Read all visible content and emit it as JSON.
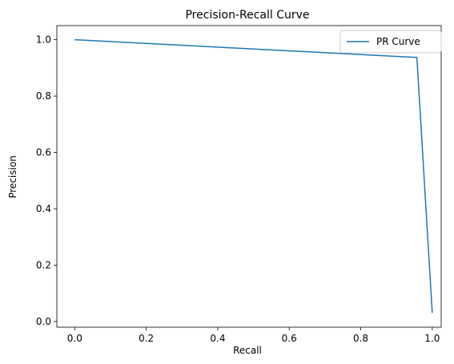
{
  "chart_data": {
    "type": "line",
    "title": "Precision-Recall Curve",
    "xlabel": "Recall",
    "ylabel": "Precision",
    "xlim": [
      -0.05,
      1.025
    ],
    "ylim": [
      -0.02,
      1.05
    ],
    "xticks": [
      0.0,
      0.2,
      0.4,
      0.6,
      0.8,
      1.0
    ],
    "xtick_labels": [
      "0.0",
      "0.2",
      "0.4",
      "0.6",
      "0.8",
      "1.0"
    ],
    "yticks": [
      0.0,
      0.2,
      0.4,
      0.6,
      0.8,
      1.0
    ],
    "ytick_labels": [
      "0.0",
      "0.2",
      "0.4",
      "0.6",
      "0.8",
      "1.0"
    ],
    "grid": false,
    "legend_position": "top-right",
    "series": [
      {
        "name": "PR Curve",
        "color": "#1f77b4",
        "x": [
          0.0,
          0.957,
          1.0
        ],
        "y": [
          1.0,
          0.937,
          0.031
        ]
      }
    ]
  }
}
